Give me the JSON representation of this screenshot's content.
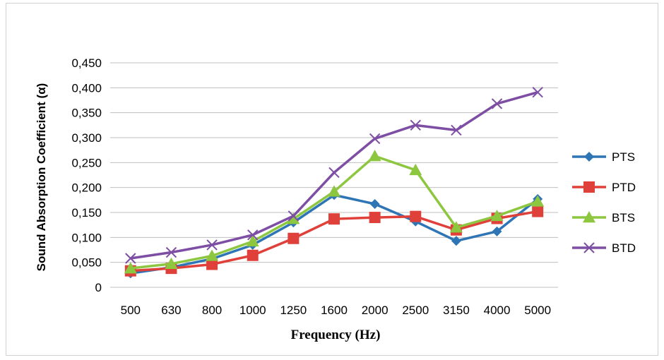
{
  "chart_data": {
    "type": "line",
    "title": "",
    "xlabel": "Frequency (Hz)",
    "ylabel": "Sound Absorption Coefficient (α)",
    "categories": [
      "500",
      "630",
      "800",
      "1000",
      "1250",
      "1600",
      "2000",
      "2500",
      "3150",
      "4000",
      "5000"
    ],
    "ylim": [
      0,
      0.45
    ],
    "y_ticks": [
      0,
      0.05,
      0.1,
      0.15,
      0.2,
      0.25,
      0.3,
      0.35,
      0.4,
      0.45
    ],
    "y_tick_labels": [
      "0",
      "0,050",
      "0,100",
      "0,150",
      "0,200",
      "0,250",
      "0,300",
      "0,350",
      "0,400",
      "0,450"
    ],
    "grid": true,
    "legend_position": "right",
    "series": [
      {
        "name": "PTS",
        "color": "#2e75b6",
        "marker": "diamond",
        "values": [
          0.028,
          0.04,
          0.057,
          0.085,
          0.13,
          0.185,
          0.167,
          0.132,
          0.093,
          0.112,
          0.177
        ]
      },
      {
        "name": "PTD",
        "color": "#e0403a",
        "marker": "square",
        "values": [
          0.033,
          0.038,
          0.046,
          0.064,
          0.098,
          0.137,
          0.14,
          0.142,
          0.115,
          0.138,
          0.152
        ]
      },
      {
        "name": "BTS",
        "color": "#8dc63f",
        "marker": "triangle",
        "values": [
          0.038,
          0.047,
          0.063,
          0.092,
          0.137,
          0.192,
          0.263,
          0.235,
          0.12,
          0.143,
          0.172
        ]
      },
      {
        "name": "BTD",
        "color": "#7d4ea3",
        "marker": "x",
        "values": [
          0.058,
          0.07,
          0.085,
          0.105,
          0.143,
          0.23,
          0.298,
          0.325,
          0.315,
          0.368,
          0.391
        ]
      }
    ]
  }
}
